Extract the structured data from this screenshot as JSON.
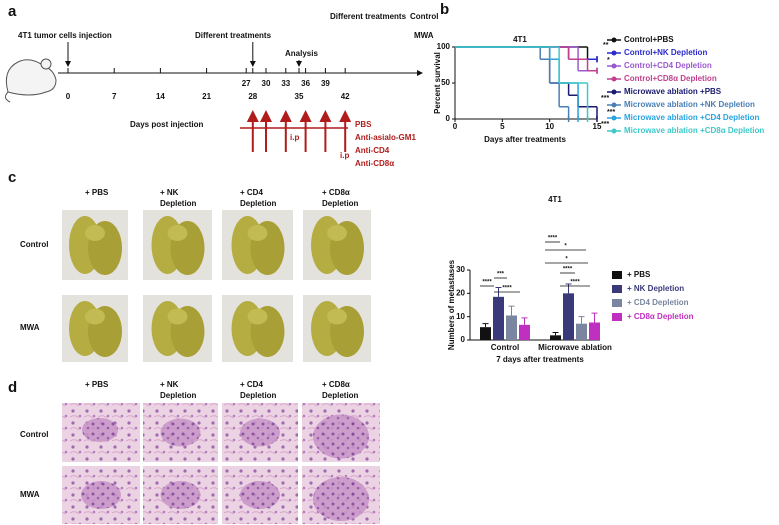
{
  "panel_a": {
    "label": "a",
    "events": [
      "4T1 tumor cells injection",
      "Different treatments",
      "Analysis",
      "Different treatments",
      "Control",
      "MWA"
    ],
    "days": [
      0,
      7,
      14,
      21,
      27,
      28,
      30,
      33,
      35,
      36,
      39,
      42
    ],
    "axis_label": "Days post injection",
    "route": [
      "i.p",
      "i.p"
    ],
    "treatments": [
      "PBS",
      "Anti-asialo-GM1",
      "Anti-CD4",
      "Anti-CD8α"
    ]
  },
  "panel_b": {
    "label": "b"
  },
  "panel_c": {
    "label": "c",
    "columns": [
      "+ PBS",
      "+ NK Depletion",
      "+ CD4 Depletion",
      "+ CD8α Depletion"
    ],
    "rows": [
      "Control",
      "MWA"
    ]
  },
  "panel_d": {
    "label": "d",
    "columns": [
      "+ PBS",
      "+ NK Depletion",
      "+ CD4 Depletion",
      "+ CD8α Depletion"
    ],
    "rows": [
      "Control",
      "MWA"
    ]
  },
  "chart_data": [
    {
      "type": "line",
      "steps": true,
      "title": "4T1",
      "x_label": "Days after treatments",
      "y_label": "Percent survival",
      "xlim": [
        0,
        15
      ],
      "xticks": [
        0,
        5,
        10,
        15
      ],
      "ylim": [
        0,
        100
      ],
      "yticks": [
        0,
        50,
        100
      ],
      "series": [
        {
          "name": "Control+PBS",
          "color": "#111111",
          "x": [
            0,
            14,
            15
          ],
          "values": [
            100,
            83,
            83
          ]
        },
        {
          "name": "Control+NK Depletion",
          "color": "#2b2bd0",
          "x": [
            0,
            12,
            15
          ],
          "values": [
            100,
            83,
            83
          ]
        },
        {
          "name": "Control+CD4 Depletion",
          "color": "#9b59d0",
          "x": [
            0,
            13,
            15
          ],
          "values": [
            100,
            67,
            67
          ]
        },
        {
          "name": "Control+CD8α Depletion",
          "color": "#c0408f",
          "x": [
            0,
            12,
            14,
            15
          ],
          "values": [
            100,
            83,
            67,
            67
          ]
        },
        {
          "name": "Microwave ablation +PBS",
          "color": "#1a1a6e",
          "x": [
            0,
            10,
            12,
            13,
            15
          ],
          "values": [
            100,
            50,
            33,
            17,
            0
          ]
        },
        {
          "name": "Microwave ablation +NK Depletion",
          "color": "#4a7fb5",
          "x": [
            0,
            9,
            10,
            11,
            12
          ],
          "values": [
            100,
            83,
            50,
            17,
            0
          ]
        },
        {
          "name": "Microwave ablation +CD4 Depletion",
          "color": "#29a3e0",
          "x": [
            0,
            10,
            11,
            13
          ],
          "values": [
            100,
            83,
            50,
            0
          ]
        },
        {
          "name": "Microwave ablation +CD8α Depletion",
          "color": "#3ec8c8",
          "x": [
            0,
            11,
            14
          ],
          "values": [
            100,
            50,
            0
          ]
        }
      ],
      "annotations": [
        "**",
        "*",
        "***",
        "***",
        "***"
      ]
    },
    {
      "type": "bar",
      "title": "4T1",
      "x_label": "7 days after treatments",
      "y_label": "Numbers of metastases",
      "categories": [
        "Control",
        "Microwave ablation"
      ],
      "ylim": [
        0,
        30
      ],
      "yticks": [
        0,
        10,
        20,
        30
      ],
      "series": [
        {
          "name": "+ PBS",
          "color": "#111111",
          "values": [
            5.5,
            2
          ],
          "errors": [
            1.5,
            1.2
          ]
        },
        {
          "name": "+ NK Depletion",
          "color": "#3a3a7a",
          "values": [
            18.5,
            20
          ],
          "errors": [
            4,
            4
          ]
        },
        {
          "name": "+ CD4 Depletion",
          "color": "#7a86a0",
          "values": [
            10.5,
            7
          ],
          "errors": [
            4,
            3
          ]
        },
        {
          "name": "+ CD8α Depletion",
          "color": "#c030c0",
          "values": [
            6.5,
            7.5
          ],
          "errors": [
            3,
            4
          ]
        }
      ],
      "annotations": [
        "****",
        "***",
        "****",
        "****",
        "*",
        "*",
        "****",
        "****"
      ]
    }
  ]
}
